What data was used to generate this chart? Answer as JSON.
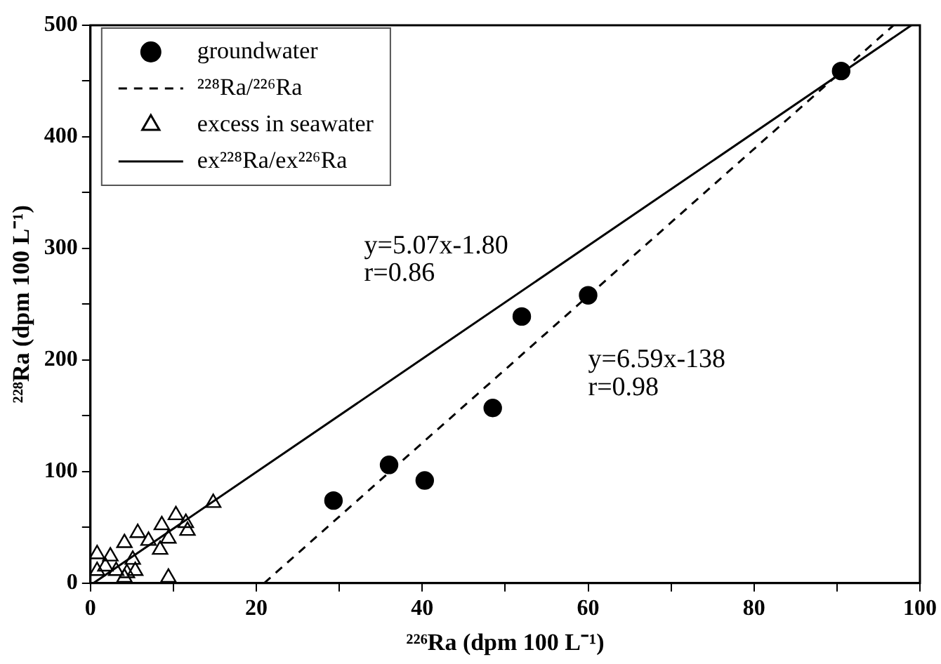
{
  "chart_data": {
    "type": "scatter",
    "xlabel": "²²⁶Ra (dpm 100 L⁻¹)",
    "ylabel": "²²⁸Ra (dpm 100 L⁻¹)",
    "xlim": [
      0,
      100
    ],
    "ylim": [
      0,
      500
    ],
    "xticks": [
      0,
      {
        "value": 10,
        "label": null
      },
      20,
      {
        "value": 30,
        "label": null
      },
      40,
      {
        "value": 50,
        "label": null
      },
      60,
      {
        "value": 70,
        "label": null
      },
      80,
      {
        "value": 90,
        "label": null
      },
      100
    ],
    "yticks": [
      0,
      {
        "value": 50,
        "label": null
      },
      100,
      {
        "value": 150,
        "label": null
      },
      200,
      {
        "value": 250,
        "label": null
      },
      300,
      {
        "value": 350,
        "label": null
      },
      400,
      {
        "value": 450,
        "label": null
      },
      500
    ],
    "grid": false,
    "legend": "top left",
    "annotations": [
      "y=5.07x-1.80",
      "r=0.86",
      "y=6.59x-138",
      "r=0.98"
    ],
    "series": [
      {
        "name": "groundwater",
        "type": "scatter",
        "marker": "circle",
        "color": "#000000",
        "x": [
          29.3,
          36,
          40.3,
          48.5,
          52,
          60,
          90.5
        ],
        "values": [
          74,
          106,
          92,
          157,
          239,
          258,
          459
        ]
      },
      {
        "name": "²²⁸Ra/²²⁶Ra",
        "type": "line",
        "line_style": "dashed",
        "marker": "none",
        "color": "#000000",
        "x": [
          20.94,
          96.82
        ],
        "values": [
          0,
          500
        ]
      },
      {
        "name": "excess in seawater",
        "type": "scatter",
        "marker": "triangle",
        "color": "#000000",
        "x": [
          14.8,
          10.3,
          8.6,
          5.7,
          11.5,
          11.7,
          9.4,
          7.0,
          4.1,
          2.4,
          0.8,
          5.1,
          8.4,
          9.4,
          0.8,
          3.1,
          4.4,
          5.4,
          1.8,
          4.1
        ],
        "values": [
          72,
          61,
          52,
          45,
          54,
          47,
          40,
          38,
          36,
          24,
          26,
          21,
          30,
          5,
          11,
          11,
          9,
          11,
          15,
          5
        ]
      },
      {
        "name": "ex²²⁸Ra/ex²²⁶Ra",
        "type": "line",
        "line_style": "solid",
        "marker": "none",
        "color": "#000000",
        "x": [
          0.36,
          98.97
        ],
        "values": [
          0,
          500
        ]
      }
    ]
  }
}
